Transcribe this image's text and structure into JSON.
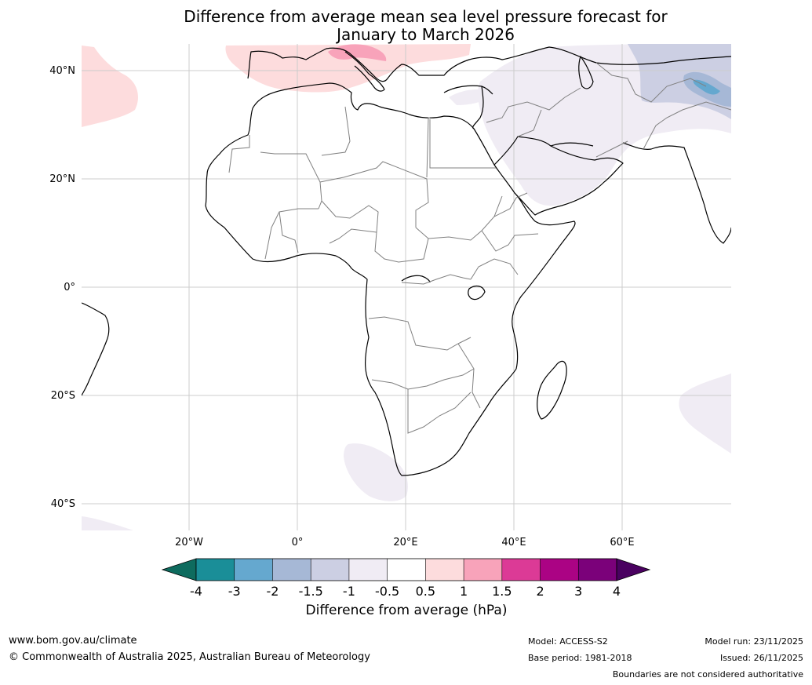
{
  "title": {
    "line1": "Difference from average mean sea level pressure forecast for",
    "line2": "January to March 2026"
  },
  "map": {
    "lat_labels": [
      "40°N",
      "20°N",
      "0°",
      "20°S",
      "40°S"
    ],
    "lon_labels": [
      "20°W",
      "0°",
      "20°E",
      "40°E",
      "60°E"
    ]
  },
  "colorbar": {
    "ticks": [
      "-4",
      "-3",
      "-2",
      "-1.5",
      "-1",
      "-0.5",
      "0.5",
      "1",
      "1.5",
      "2",
      "3",
      "4"
    ],
    "colors": [
      "#0e6b5e",
      "#1a8e98",
      "#65a8cf",
      "#a6b8d6",
      "#cccfe3",
      "#f0ecf4",
      "#ffffff",
      "#fddcdd",
      "#f8a3ba",
      "#dc3a96",
      "#ab0384",
      "#7b017a",
      "#4a0160"
    ],
    "label": "Difference from average (hPa)"
  },
  "footer": {
    "website": "www.bom.gov.au/climate",
    "copyright": "© Commonwealth of Australia 2025, Australian Bureau of Meteorology",
    "model": "Model: ACCESS-S2",
    "base_period": "Base period: 1981-2018",
    "model_run": "Model run: 23/11/2025",
    "issued": "Issued: 26/11/2025",
    "disclaimer": "Boundaries are not considered authoritative"
  }
}
